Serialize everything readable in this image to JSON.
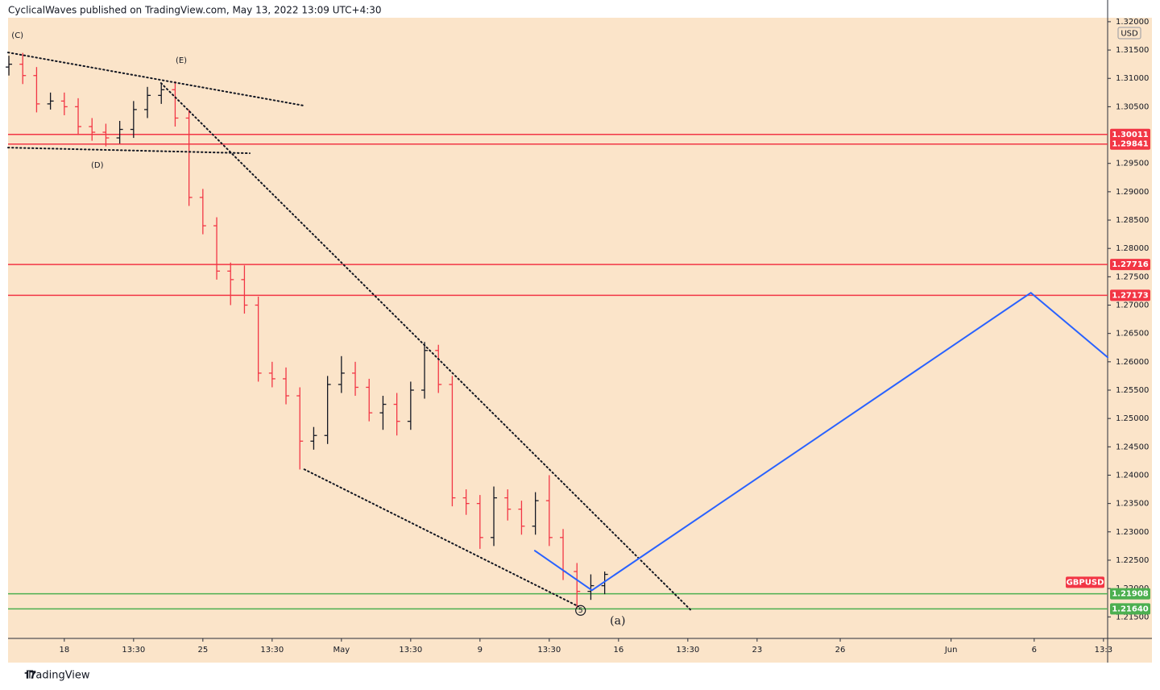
{
  "header": "CyclicalWaves published on TradingView.com, May 13, 2022 13:09 UTC+4:30",
  "footer": "TradingView",
  "chart_data": {
    "type": "ohlc",
    "currency": "USD",
    "symbol": "GBPUSD",
    "symbol_price": 1.2211,
    "background": "#fbe4c9",
    "up_color": "#131722",
    "down_color": "#f23645",
    "xlim": [
      -2.03,
      37.65
    ],
    "ylim": [
      1.2112,
      1.3207
    ],
    "xticks": [
      {
        "value": 0,
        "label": "18"
      },
      {
        "value": 2.5,
        "label": "13:30"
      },
      {
        "value": 5,
        "label": "25"
      },
      {
        "value": 7.5,
        "label": "13:30"
      },
      {
        "value": 10,
        "label": "May"
      },
      {
        "value": 12.5,
        "label": "13:30"
      },
      {
        "value": 15,
        "label": "9"
      },
      {
        "value": 17.5,
        "label": "13:30"
      },
      {
        "value": 20,
        "label": "16"
      },
      {
        "value": 22.5,
        "label": "13:30"
      },
      {
        "value": 25,
        "label": "23"
      },
      {
        "value": 28,
        "label": "26"
      },
      {
        "value": 32,
        "label": "Jun"
      },
      {
        "value": 35,
        "label": "6"
      },
      {
        "value": 37.5,
        "label": "13:3"
      }
    ],
    "yticks": [
      {
        "value": 1.32,
        "label": "1.32000"
      },
      {
        "value": 1.315,
        "label": "1.31500"
      },
      {
        "value": 1.31,
        "label": "1.31000"
      },
      {
        "value": 1.305,
        "label": "1.30500"
      },
      {
        "value": 1.295,
        "label": "1.29500"
      },
      {
        "value": 1.29,
        "label": "1.29000"
      },
      {
        "value": 1.285,
        "label": "1.28500"
      },
      {
        "value": 1.28,
        "label": "1.28000"
      },
      {
        "value": 1.275,
        "label": "1.27500"
      },
      {
        "value": 1.27,
        "label": "1.27000"
      },
      {
        "value": 1.265,
        "label": "1.26500"
      },
      {
        "value": 1.26,
        "label": "1.26000"
      },
      {
        "value": 1.255,
        "label": "1.25500"
      },
      {
        "value": 1.25,
        "label": "1.25000"
      },
      {
        "value": 1.245,
        "label": "1.24500"
      },
      {
        "value": 1.24,
        "label": "1.24000"
      },
      {
        "value": 1.235,
        "label": "1.23500"
      },
      {
        "value": 1.23,
        "label": "1.23000"
      },
      {
        "value": 1.225,
        "label": "1.22500"
      },
      {
        "value": 1.22,
        "label": "1.22000"
      },
      {
        "value": 1.215,
        "label": "1.21500"
      }
    ],
    "x": [
      -2,
      -1.5,
      -1,
      -0.5,
      0,
      0.5,
      1,
      1.5,
      2,
      2.5,
      3,
      3.5,
      4,
      4.5,
      5,
      5.5,
      6,
      6.5,
      7,
      7.5,
      8,
      8.5,
      9,
      9.5,
      10,
      10.5,
      11,
      11.5,
      12,
      12.5,
      13,
      13.5,
      14,
      14.5,
      15,
      15.5,
      16,
      16.5,
      17,
      17.5,
      18,
      18.5,
      19,
      19.5
    ],
    "open": [
      1.312,
      1.3125,
      1.3105,
      1.3055,
      1.306,
      1.305,
      1.3015,
      1.3005,
      1.2995,
      1.301,
      1.3045,
      1.307,
      1.308,
      1.303,
      1.289,
      1.284,
      1.276,
      1.2745,
      1.27,
      1.258,
      1.257,
      1.254,
      1.246,
      1.247,
      1.256,
      1.258,
      1.2555,
      1.251,
      1.2525,
      1.2495,
      1.255,
      1.262,
      1.256,
      1.236,
      1.235,
      1.229,
      1.236,
      1.234,
      1.231,
      1.2355,
      1.229,
      1.223,
      1.2195,
      1.2205
    ],
    "high": [
      1.314,
      1.3145,
      1.312,
      1.3075,
      1.3075,
      1.3065,
      1.303,
      1.302,
      1.3025,
      1.306,
      1.3085,
      1.309,
      1.3095,
      1.3045,
      1.2905,
      1.2855,
      1.2775,
      1.277,
      1.2715,
      1.26,
      1.259,
      1.2555,
      1.2485,
      1.2575,
      1.261,
      1.26,
      1.257,
      1.254,
      1.2545,
      1.2565,
      1.2635,
      1.263,
      1.2575,
      1.2375,
      1.2365,
      1.238,
      1.2375,
      1.2355,
      1.237,
      1.24,
      1.2305,
      1.2245,
      1.2225,
      1.223
    ],
    "low": [
      1.3105,
      1.309,
      1.304,
      1.3045,
      1.3035,
      1.3,
      1.299,
      1.298,
      1.2985,
      1.2995,
      1.303,
      1.3055,
      1.3015,
      1.2875,
      1.2825,
      1.2745,
      1.27,
      1.2685,
      1.2565,
      1.2555,
      1.2525,
      1.241,
      1.2445,
      1.2455,
      1.2545,
      1.254,
      1.2495,
      1.248,
      1.247,
      1.248,
      1.2535,
      1.2545,
      1.2345,
      1.233,
      1.227,
      1.2275,
      1.232,
      1.2295,
      1.2295,
      1.2275,
      1.2215,
      1.2165,
      1.218,
      1.219
    ],
    "close": [
      1.3125,
      1.3105,
      1.3055,
      1.306,
      1.305,
      1.3015,
      1.3005,
      1.2995,
      1.301,
      1.3045,
      1.307,
      1.308,
      1.303,
      1.289,
      1.284,
      1.276,
      1.2745,
      1.27,
      1.258,
      1.257,
      1.254,
      1.246,
      1.247,
      1.256,
      1.258,
      1.2555,
      1.251,
      1.2525,
      1.2495,
      1.255,
      1.262,
      1.256,
      1.236,
      1.235,
      1.229,
      1.236,
      1.234,
      1.231,
      1.2355,
      1.229,
      1.223,
      1.2195,
      1.2205,
      1.2225
    ],
    "levels": [
      {
        "price": 1.30011,
        "color": "#f23645"
      },
      {
        "price": 1.29841,
        "color": "#f23645"
      },
      {
        "price": 1.27716,
        "color": "#f23645"
      },
      {
        "price": 1.27173,
        "color": "#f23645"
      },
      {
        "price": 1.21908,
        "color": "#4caf50"
      },
      {
        "price": 1.2164,
        "label": "1.21640",
        "color": "#4caf50"
      }
    ],
    "trendlines": [
      {
        "style": "dotted",
        "color": "#131722",
        "points": [
          [
            -2.03,
            1.31457
          ],
          [
            8.66,
            1.30518
          ]
        ]
      },
      {
        "style": "dotted",
        "color": "#131722",
        "points": [
          [
            -2.03,
            1.29779
          ],
          [
            6.69,
            1.29679
          ]
        ]
      },
      {
        "style": "dotted",
        "color": "#131722",
        "points": [
          [
            3.49,
            1.30917
          ],
          [
            22.62,
            1.21614
          ]
        ]
      },
      {
        "style": "dotted",
        "color": "#131722",
        "points": [
          [
            8.66,
            1.24103
          ],
          [
            18.55,
            1.21685
          ]
        ]
      },
      {
        "style": "solid",
        "color": "#2962ff",
        "points": [
          [
            16.98,
            1.22667
          ],
          [
            19.04,
            1.21969
          ],
          [
            34.88,
            1.27218
          ],
          [
            37.65,
            1.2608
          ]
        ]
      }
    ],
    "annotations": [
      {
        "text": "(C)",
        "x": -1.69,
        "y": 1.31756
      },
      {
        "text": "(E)",
        "x": 4.22,
        "y": 1.31315
      },
      {
        "text": "(D)",
        "x": 1.19,
        "y": 1.29466
      },
      {
        "text": "(a)",
        "x": 19.97,
        "y": 1.21429,
        "big": true
      },
      {
        "text": "5",
        "x": 18.63,
        "y": 1.21614,
        "circled": true
      }
    ]
  }
}
